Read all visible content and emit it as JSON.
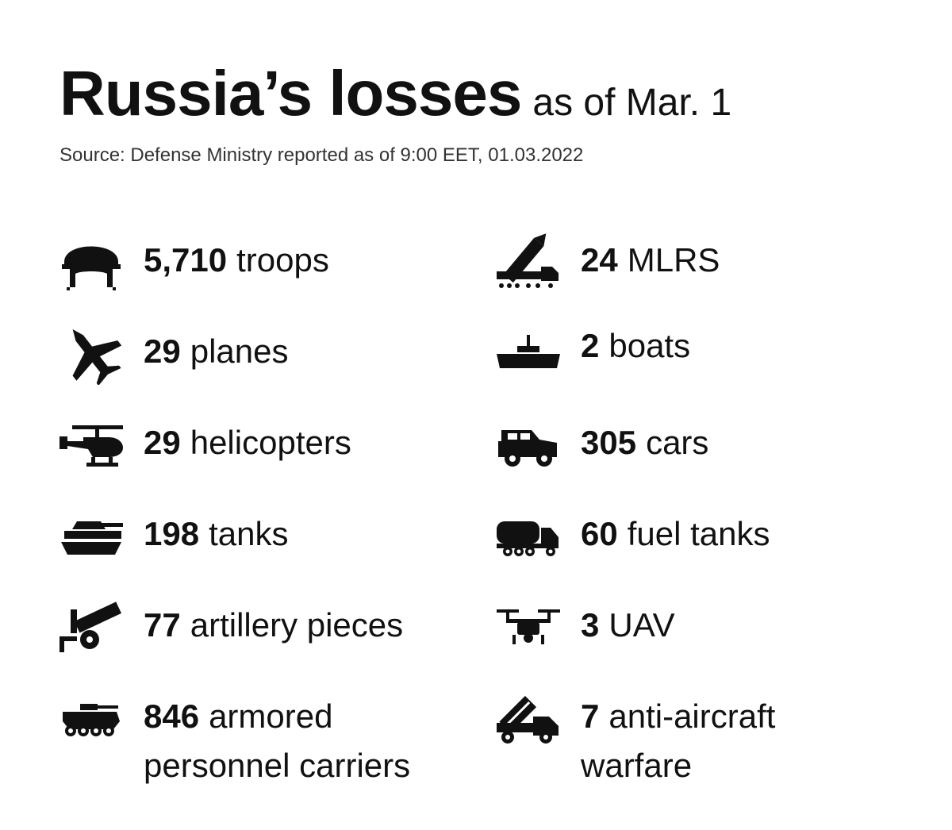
{
  "header": {
    "title": "Russia’s losses",
    "subtitle": "as of Mar. 1",
    "source": "Source: Defense Ministry reported as of 9:00 EET, 01.03.2022"
  },
  "left": [
    {
      "count": "5,710",
      "label": "troops",
      "icon": "helmet-icon"
    },
    {
      "count": "29",
      "label": "planes",
      "icon": "jet-icon"
    },
    {
      "count": "29",
      "label": "helicopters",
      "icon": "helicopter-icon"
    },
    {
      "count": "198",
      "label": "tanks",
      "icon": "tank-icon"
    },
    {
      "count": "77",
      "label": "artillery pieces",
      "icon": "artillery-icon"
    },
    {
      "count": "846",
      "label": "armored",
      "label2": "personnel carriers",
      "icon": "apc-icon"
    }
  ],
  "right": [
    {
      "count": "24",
      "label": "MLRS",
      "icon": "mlrs-icon"
    },
    {
      "count": "2",
      "label": "boats",
      "icon": "boat-icon"
    },
    {
      "count": "305",
      "label": "cars",
      "icon": "jeep-icon"
    },
    {
      "count": "60",
      "label": "fuel tanks",
      "icon": "fuel-truck-icon"
    },
    {
      "count": "3",
      "label": "UAV",
      "icon": "drone-icon"
    },
    {
      "count": "7",
      "label": "anti-aircraft",
      "label2": "warfare",
      "icon": "anti-aircraft-icon"
    }
  ]
}
